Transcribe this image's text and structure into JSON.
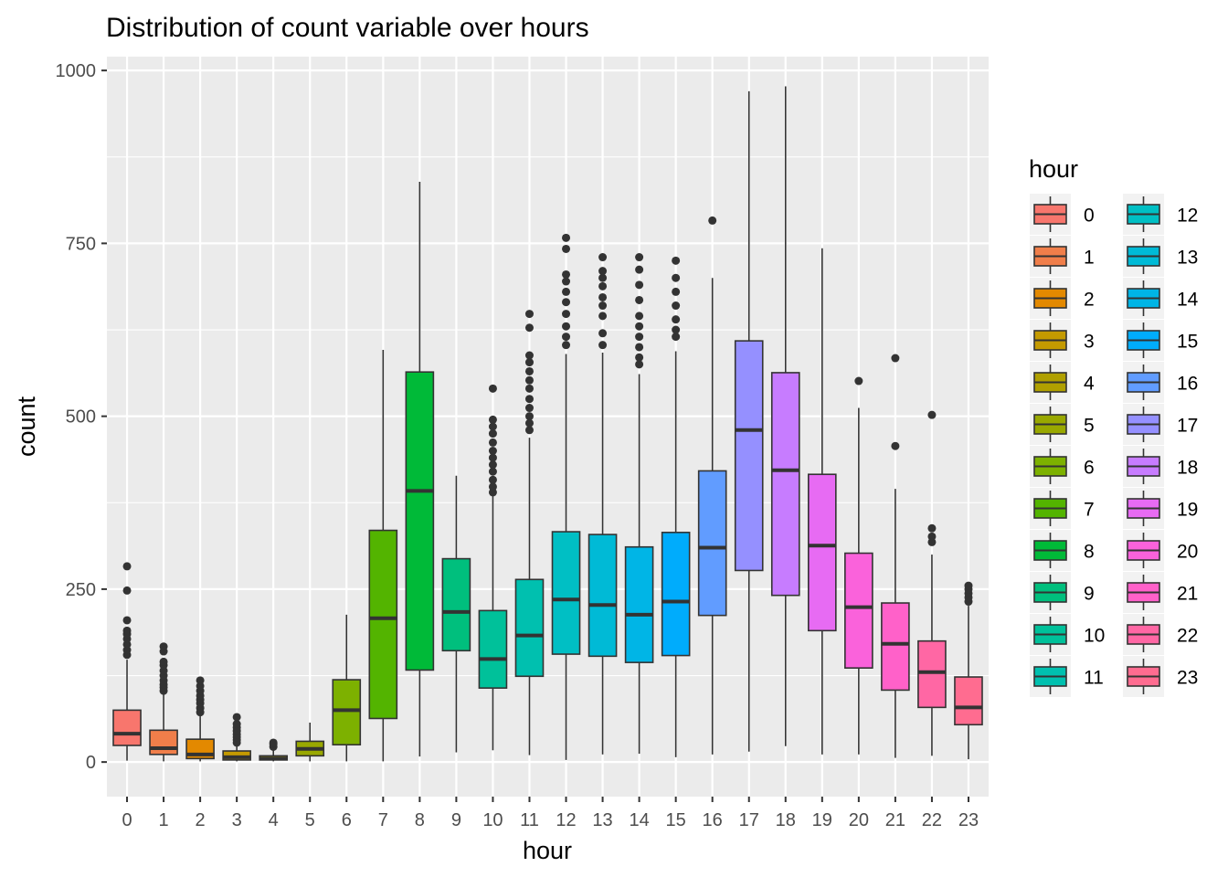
{
  "chart_data": {
    "type": "box",
    "title": "Distribution of count variable over hours",
    "xlabel": "hour",
    "ylabel": "count",
    "ylim": [
      -50,
      1020
    ],
    "yticks": [
      0,
      250,
      500,
      750,
      1000
    ],
    "grid": true,
    "legend": {
      "title": "hour",
      "placement": "right",
      "columns": 2
    },
    "categories": [
      "0",
      "1",
      "2",
      "3",
      "4",
      "5",
      "6",
      "7",
      "8",
      "9",
      "10",
      "11",
      "12",
      "13",
      "14",
      "15",
      "16",
      "17",
      "18",
      "19",
      "20",
      "21",
      "22",
      "23"
    ],
    "colors": [
      "#F8766D",
      "#F07E4A",
      "#E38900",
      "#C49A00",
      "#B0A000",
      "#99A800",
      "#7DB100",
      "#53B400",
      "#00BA38",
      "#00BF7D",
      "#00C19A",
      "#00C0AF",
      "#00BFC4",
      "#00BAD6",
      "#00B5E6",
      "#00ACFC",
      "#619CFF",
      "#9590FF",
      "#C77CFF",
      "#E76BF3",
      "#FA62DB",
      "#FF61C9",
      "#FF67A4",
      "#FF6C90"
    ],
    "boxes": [
      {
        "hour": "0",
        "min": 2,
        "q1": 24,
        "median": 41,
        "q3": 75,
        "max": 148,
        "outliers": [
          155,
          162,
          170,
          178,
          185,
          190,
          205,
          248,
          283
        ]
      },
      {
        "hour": "1",
        "min": 1,
        "q1": 11,
        "median": 20,
        "q3": 46,
        "max": 99,
        "outliers": [
          103,
          108,
          112,
          118,
          125,
          132,
          140,
          145,
          160,
          167
        ]
      },
      {
        "hour": "2",
        "min": 1,
        "q1": 5,
        "median": 11,
        "q3": 33,
        "max": 68,
        "outliers": [
          72,
          78,
          85,
          90,
          96,
          103,
          110,
          118
        ]
      },
      {
        "hour": "3",
        "min": 1,
        "q1": 3,
        "median": 7,
        "q3": 16,
        "max": 24,
        "outliers": [
          28,
          32,
          36,
          40,
          45,
          50,
          55,
          65
        ]
      },
      {
        "hour": "4",
        "min": 1,
        "q1": 3,
        "median": 5,
        "q3": 9,
        "max": 18,
        "outliers": [
          22,
          26,
          28
        ]
      },
      {
        "hour": "5",
        "min": 1,
        "q1": 9,
        "median": 19,
        "q3": 30,
        "max": 57,
        "outliers": []
      },
      {
        "hour": "6",
        "min": 1,
        "q1": 25,
        "median": 75,
        "q3": 119,
        "max": 213,
        "outliers": []
      },
      {
        "hour": "7",
        "min": 1,
        "q1": 63,
        "median": 208,
        "q3": 335,
        "max": 596,
        "outliers": []
      },
      {
        "hour": "8",
        "min": 8,
        "q1": 133,
        "median": 392,
        "q3": 564,
        "max": 839,
        "outliers": []
      },
      {
        "hour": "9",
        "min": 14,
        "q1": 161,
        "median": 217,
        "q3": 294,
        "max": 414,
        "outliers": []
      },
      {
        "hour": "10",
        "min": 17,
        "q1": 107,
        "median": 149,
        "q3": 219,
        "max": 385,
        "outliers": [
          390,
          398,
          408,
          420,
          430,
          440,
          450,
          462,
          475,
          485,
          495,
          540
        ]
      },
      {
        "hour": "11",
        "min": 10,
        "q1": 124,
        "median": 183,
        "q3": 264,
        "max": 469,
        "outliers": [
          480,
          490,
          500,
          512,
          525,
          540,
          552,
          565,
          578,
          588,
          628,
          648
        ]
      },
      {
        "hour": "12",
        "min": 3,
        "q1": 156,
        "median": 235,
        "q3": 333,
        "max": 590,
        "outliers": [
          603,
          615,
          630,
          648,
          665,
          680,
          695,
          705,
          742,
          758
        ]
      },
      {
        "hour": "13",
        "min": 11,
        "q1": 153,
        "median": 227,
        "q3": 329,
        "max": 592,
        "outliers": [
          603,
          620,
          645,
          660,
          672,
          688,
          700,
          710,
          730
        ]
      },
      {
        "hour": "14",
        "min": 12,
        "q1": 144,
        "median": 213,
        "q3": 311,
        "max": 561,
        "outliers": [
          575,
          585,
          600,
          615,
          630,
          645,
          668,
          690,
          712,
          730
        ]
      },
      {
        "hour": "15",
        "min": 7,
        "q1": 154,
        "median": 232,
        "q3": 332,
        "max": 594,
        "outliers": [
          615,
          625,
          640,
          660,
          680,
          700,
          725
        ]
      },
      {
        "hour": "16",
        "min": 11,
        "q1": 212,
        "median": 310,
        "q3": 421,
        "max": 700,
        "outliers": [
          783
        ]
      },
      {
        "hour": "17",
        "min": 15,
        "q1": 277,
        "median": 480,
        "q3": 609,
        "max": 970,
        "outliers": []
      },
      {
        "hour": "18",
        "min": 23,
        "q1": 241,
        "median": 422,
        "q3": 563,
        "max": 977,
        "outliers": []
      },
      {
        "hour": "19",
        "min": 11,
        "q1": 190,
        "median": 313,
        "q3": 416,
        "max": 743,
        "outliers": []
      },
      {
        "hour": "20",
        "min": 11,
        "q1": 136,
        "median": 224,
        "q3": 302,
        "max": 512,
        "outliers": [
          551
        ]
      },
      {
        "hour": "21",
        "min": 6,
        "q1": 104,
        "median": 171,
        "q3": 230,
        "max": 395,
        "outliers": [
          457,
          584
        ]
      },
      {
        "hour": "22",
        "min": 9,
        "q1": 79,
        "median": 130,
        "q3": 175,
        "max": 300,
        "outliers": [
          318,
          326,
          338,
          502
        ]
      },
      {
        "hour": "23",
        "min": 4,
        "q1": 54,
        "median": 79,
        "q3": 123,
        "max": 226,
        "outliers": [
          232,
          238,
          244,
          250,
          255
        ]
      }
    ]
  }
}
